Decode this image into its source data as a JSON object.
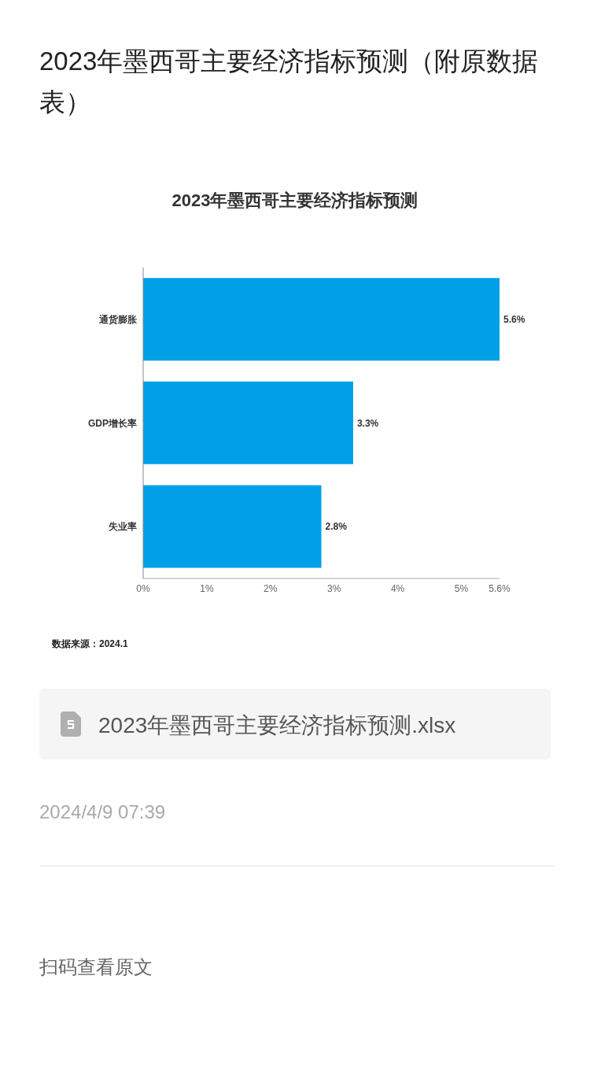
{
  "chart_data": {
    "type": "bar",
    "orientation": "horizontal",
    "title": "2023年墨西哥主要经济指标预测",
    "categories": [
      "通货膨胀",
      "GDP增长率",
      "失业率"
    ],
    "values": [
      5.6,
      3.3,
      2.8
    ],
    "value_labels": [
      "5.6%",
      "3.3%",
      "2.8%"
    ],
    "color": "#00a0e9",
    "xlim": [
      0,
      5.6
    ],
    "xticks": [
      {
        "value": 0,
        "label": "0%"
      },
      {
        "value": 1,
        "label": "1%"
      },
      {
        "value": 2,
        "label": "2%"
      },
      {
        "value": 3,
        "label": "3%"
      },
      {
        "value": 4,
        "label": "4%"
      },
      {
        "value": 5,
        "label": "5%"
      },
      {
        "value": 5.6,
        "label": "5.6%"
      }
    ],
    "grid": false,
    "annotations": [
      "2023年墨西哥主要经济指标预测（附原数据表）",
      "数据来源：2024.1",
      "2023年墨西哥主要经济指标预测.xlsx",
      "2024/4/9 07:39",
      "扫码查看原文"
    ]
  }
}
